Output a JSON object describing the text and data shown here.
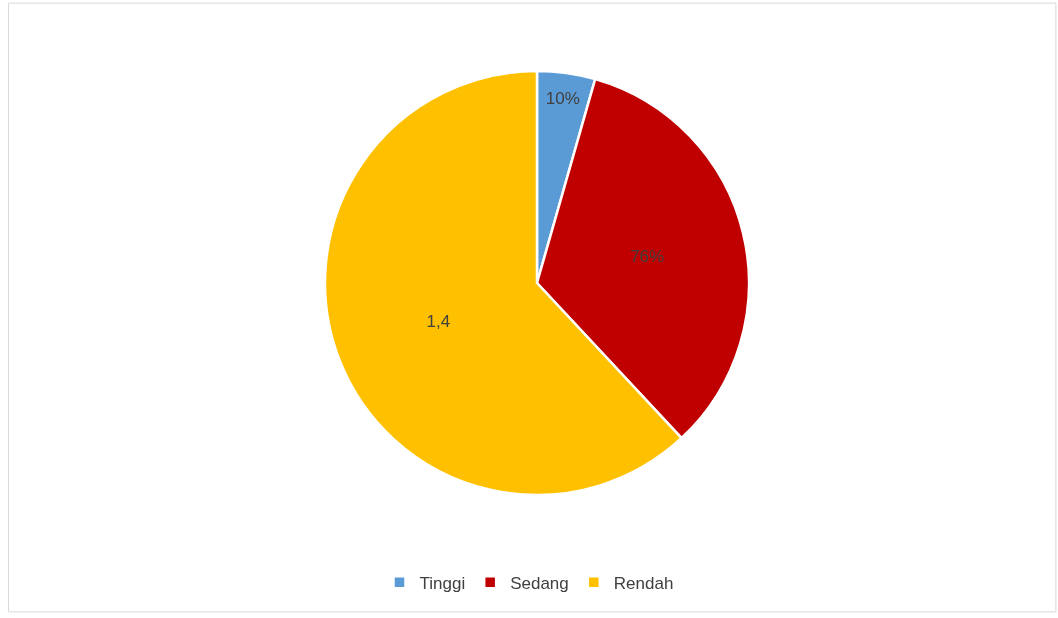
{
  "chart_data": {
    "type": "pie",
    "categories": [
      "Tinggi",
      "Sedang",
      "Rendah"
    ],
    "values": [
      0.1,
      0.76,
      1.4
    ],
    "value_labels": [
      "10%",
      "76%",
      "1,4"
    ],
    "colors": [
      "#5b9bd5",
      "#c00000",
      "#ffc000"
    ],
    "legend": "bottom"
  }
}
